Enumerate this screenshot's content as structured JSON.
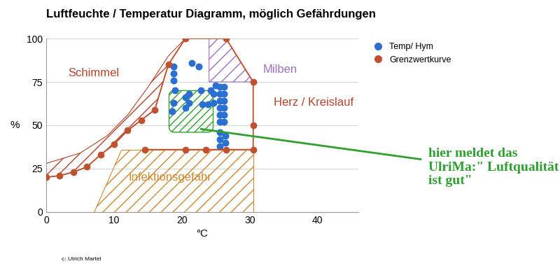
{
  "chart_data": {
    "type": "scatter",
    "title": "Luftfeuchte / Temperatur Diagramm, möglich Gefährdungen",
    "x_label": "°C",
    "y_label": "%",
    "xlim": [
      0,
      46
    ],
    "ylim": [
      0,
      100
    ],
    "xticks": [
      0,
      10,
      20,
      30,
      40
    ],
    "yticks": [
      0,
      25,
      50,
      75,
      100
    ],
    "grid": true,
    "legend": "upper left",
    "series": [
      {
        "name": "Temp/ Hym",
        "type": "scatter",
        "color": "#2a6fd1",
        "marker": "o",
        "x": [
          18.8,
          18.8,
          18.8,
          19,
          18.8,
          18.6,
          20.5,
          21,
          21,
          20.5,
          21.5,
          22.5,
          22.8,
          23,
          23.8,
          24.2,
          24.6,
          24.6,
          25,
          25.6,
          25.6,
          25.6,
          25.6,
          25.6,
          25.6,
          26.2,
          26.2,
          26.2,
          26.2,
          26.2,
          26.2,
          25.6,
          25.6,
          25.6,
          26.4,
          26.4
        ],
        "values": [
          84,
          80,
          76,
          70,
          63,
          58,
          66,
          68,
          63,
          60,
          86,
          84,
          70,
          62,
          62,
          70,
          63,
          68,
          73,
          72,
          68,
          64,
          60,
          56,
          52,
          72,
          68,
          64,
          60,
          56,
          52,
          46,
          42,
          38,
          44,
          40
        ]
      },
      {
        "name": "Grenzwertkurve",
        "type": "line",
        "color": "#c0502e",
        "marker": "o",
        "line_style": "solid",
        "x": [
          0,
          2,
          4,
          6,
          8,
          10,
          12,
          14,
          16,
          18,
          20.5,
          26.5,
          30.5,
          30.5,
          30.5,
          26.5,
          23.5,
          20.5,
          14.5
        ],
        "values": [
          20,
          21,
          23,
          26,
          33,
          39,
          47,
          53,
          59,
          85,
          100,
          100,
          75,
          50,
          36,
          36,
          36,
          36,
          36
        ]
      }
    ],
    "regions": [
      {
        "label": "Schimmel",
        "color": "#b5432a",
        "label_at": [
          7,
          80
        ],
        "x": [
          0,
          5,
          9,
          12,
          15,
          18,
          20.5,
          18,
          16,
          14,
          12,
          10,
          8,
          6,
          4,
          2,
          0
        ],
        "y": [
          28,
          34,
          44,
          56,
          72,
          90,
          100,
          85,
          59,
          53,
          47,
          39,
          33,
          26,
          23,
          21,
          20
        ]
      },
      {
        "label": "Milben",
        "color": "#a070c0",
        "label_at": [
          34.5,
          82
        ],
        "x": [
          24,
          24,
          26.5,
          30.5
        ],
        "y": [
          75,
          100,
          100,
          75
        ]
      },
      {
        "label": "Herz / Kreislauf",
        "color": "#b5432a",
        "label_at": [
          39.4,
          63
        ]
      },
      {
        "label": "Infektionsgefahr",
        "color": "#d08a30",
        "label_at": [
          18.3,
          20
        ],
        "x": [
          7,
          30.5,
          30.5,
          11
        ],
        "y": [
          0,
          0,
          36,
          36
        ]
      }
    ],
    "annotation": {
      "text": "hier meldet das UlriMa:\" Luftqualität ist gut\"",
      "color": "#2ea02e",
      "box_x": [
        18.1,
        24.6
      ],
      "box_y": [
        46,
        70
      ],
      "point": [
        22.5,
        48
      ]
    },
    "credit": "c: Ulrich Martel"
  }
}
